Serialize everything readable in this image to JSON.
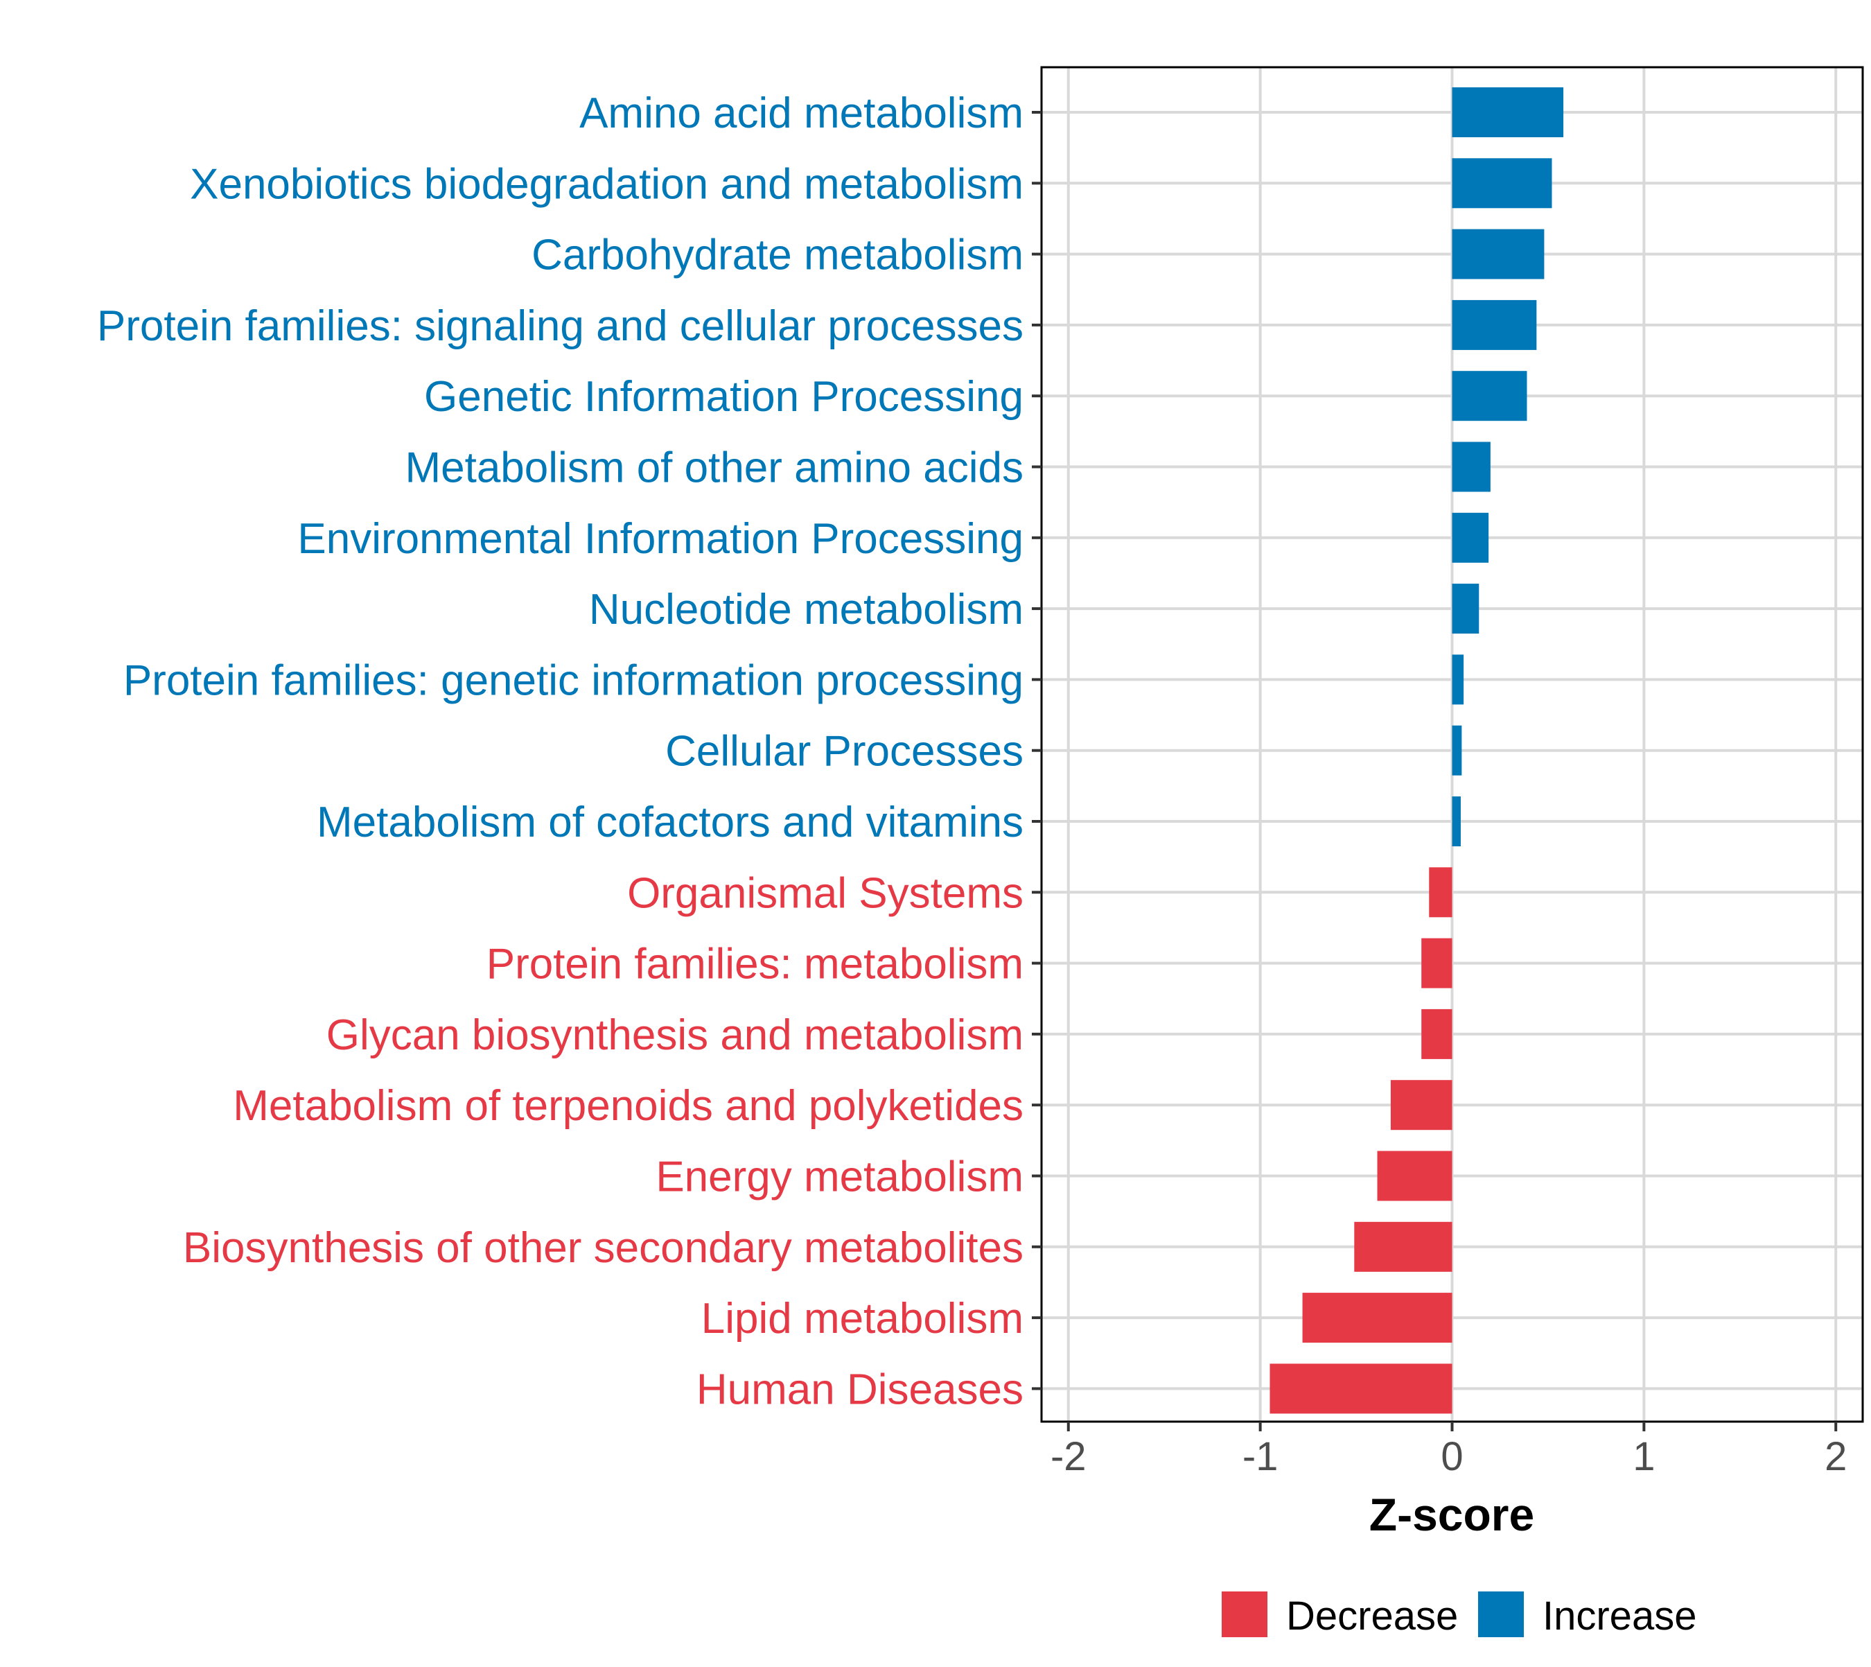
{
  "chart_data": {
    "type": "bar",
    "orientation": "horizontal",
    "title": "",
    "xlabel": "Z-score",
    "ylabel": "",
    "xlim": [
      -2.14,
      2.14
    ],
    "xticks": [
      -2,
      -1,
      0,
      1,
      2
    ],
    "xtick_labels": [
      "-2",
      "-1",
      "0",
      "1",
      "2"
    ],
    "grid": true,
    "legend_position": "bottom",
    "colors": {
      "Decrease": "#e63946",
      "Increase": "#0077b6",
      "grid": "#d9d9d9",
      "axis": "#000000",
      "tick_text": "#4d4d4d"
    },
    "legend": [
      {
        "name": "Decrease",
        "color": "#e63946"
      },
      {
        "name": "Increase",
        "color": "#0077b6"
      }
    ],
    "categories": [
      "Amino acid metabolism",
      "Xenobiotics biodegradation and metabolism",
      "Carbohydrate metabolism",
      "Protein families: signaling and cellular processes",
      "Genetic Information Processing",
      "Metabolism of other amino acids",
      "Environmental Information Processing",
      "Nucleotide metabolism",
      "Protein families: genetic information processing",
      "Cellular Processes",
      "Metabolism of cofactors and vitamins",
      "Organismal Systems",
      "Protein families: metabolism",
      "Glycan biosynthesis and metabolism",
      "Metabolism of terpenoids and polyketides",
      "Energy metabolism",
      "Biosynthesis of other secondary metabolites",
      "Lipid metabolism",
      "Human Diseases"
    ],
    "values": [
      0.58,
      0.52,
      0.48,
      0.44,
      0.39,
      0.2,
      0.19,
      0.14,
      0.06,
      0.05,
      0.045,
      -0.12,
      -0.16,
      -0.16,
      -0.32,
      -0.39,
      -0.51,
      -0.78,
      -0.95
    ],
    "groups": [
      "Increase",
      "Increase",
      "Increase",
      "Increase",
      "Increase",
      "Increase",
      "Increase",
      "Increase",
      "Increase",
      "Increase",
      "Increase",
      "Decrease",
      "Decrease",
      "Decrease",
      "Decrease",
      "Decrease",
      "Decrease",
      "Decrease",
      "Decrease"
    ]
  }
}
